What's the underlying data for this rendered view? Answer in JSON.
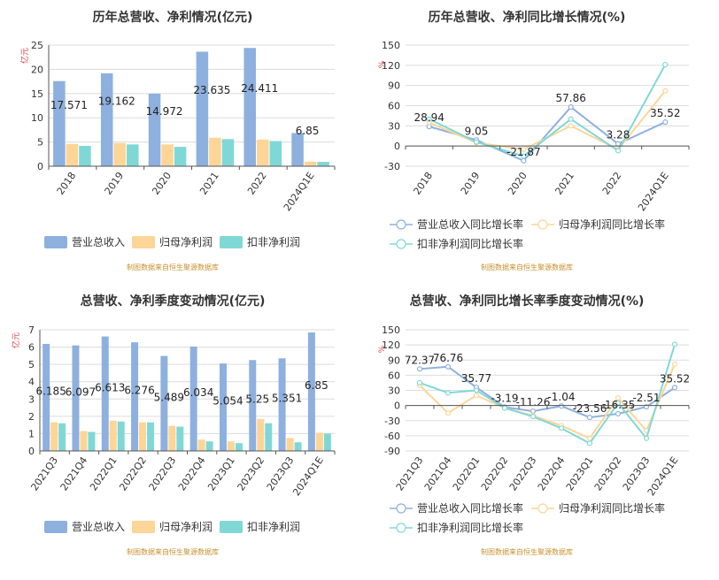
{
  "source_note": "制图数据来自恒生聚源数据库",
  "colors": {
    "revenue": "#8eb0de",
    "net_profit": "#fdd597",
    "deducted_profit": "#80d8d6",
    "revenue_line": "#8eb0de",
    "net_line": "#fdd597",
    "deducted_line": "#80d8d6",
    "unit": "#e03a3a",
    "source": "#c8902e"
  },
  "chart_data": [
    {
      "id": "annual-bar",
      "type": "bar",
      "title": "历年总营收、净利情况(亿元)",
      "unit_label": "亿元",
      "categories": [
        "2018",
        "2019",
        "2020",
        "2021",
        "2022",
        "2024Q1E"
      ],
      "ylim": [
        0,
        25
      ],
      "yticks": [
        0,
        5,
        10,
        15,
        20,
        25
      ],
      "series": [
        {
          "name": "营业总收入",
          "values": [
            17.571,
            19.162,
            14.972,
            23.635,
            24.411,
            6.85
          ],
          "color_key": "revenue"
        },
        {
          "name": "归母净利润",
          "values": [
            4.6,
            4.8,
            4.5,
            5.9,
            5.5,
            0.95
          ],
          "color_key": "net_profit"
        },
        {
          "name": "扣非净利润",
          "values": [
            4.2,
            4.5,
            4.0,
            5.6,
            5.2,
            0.9
          ],
          "color_key": "deducted_profit"
        }
      ],
      "data_labels": [
        "17.571",
        "19.162",
        "14.972",
        "23.635",
        "24.411",
        "6.85"
      ],
      "grid": true,
      "legend": "bottom"
    },
    {
      "id": "annual-line",
      "type": "line",
      "title": "历年总营收、净利同比增长情况(%)",
      "unit_label": "%",
      "categories": [
        "2018",
        "2019",
        "2020",
        "2021",
        "2022",
        "2024Q1E"
      ],
      "ylim": [
        -30,
        150
      ],
      "yticks": [
        -30,
        0,
        30,
        60,
        90,
        120,
        150
      ],
      "series": [
        {
          "name": "营业总收入同比增长率",
          "values": [
            28.94,
            9.05,
            -21.87,
            57.86,
            3.28,
            35.52
          ],
          "color_key": "revenue_line"
        },
        {
          "name": "归母净利润同比增长率",
          "values": [
            35,
            5,
            -5,
            30,
            -5,
            82
          ],
          "color_key": "net_line"
        },
        {
          "name": "扣非净利润同比增长率",
          "values": [
            40,
            6,
            -15,
            40,
            -7,
            121
          ],
          "color_key": "deducted_line"
        }
      ],
      "data_labels": [
        "28.94",
        "9.05",
        "-21.87",
        "57.86",
        "3.28",
        "35.52"
      ],
      "grid": true,
      "legend": "bottom"
    },
    {
      "id": "quarter-bar",
      "type": "bar",
      "title": "总营收、净利季度变动情况(亿元)",
      "unit_label": "亿元",
      "categories": [
        "2021Q3",
        "2021Q4",
        "2022Q1",
        "2022Q2",
        "2022Q3",
        "2022Q4",
        "2023Q1",
        "2023Q2",
        "2023Q3",
        "2024Q1E"
      ],
      "ylim": [
        0,
        7
      ],
      "yticks": [
        0,
        1,
        2,
        3,
        4,
        5,
        6,
        7
      ],
      "series": [
        {
          "name": "营业总收入",
          "values": [
            6.185,
            6.097,
            6.613,
            6.276,
            5.489,
            6.034,
            5.054,
            5.25,
            5.351,
            6.85
          ],
          "color_key": "revenue"
        },
        {
          "name": "归母净利润",
          "values": [
            1.65,
            1.15,
            1.75,
            1.65,
            1.45,
            0.65,
            0.55,
            1.85,
            0.75,
            1.05
          ],
          "color_key": "net_profit"
        },
        {
          "name": "扣非净利润",
          "values": [
            1.6,
            1.1,
            1.7,
            1.65,
            1.4,
            0.55,
            0.45,
            1.6,
            0.5,
            1.0
          ],
          "color_key": "deducted_profit"
        }
      ],
      "data_labels": [
        "6.185",
        "6.097",
        "6.613",
        "6.276",
        "5.489",
        "6.034",
        "5.054",
        "5.25",
        "5.351",
        "6.85"
      ],
      "grid": true,
      "legend": "bottom"
    },
    {
      "id": "quarter-line",
      "type": "line",
      "title": "总营收、净利同比增长率季度变动情况(%)",
      "unit_label": "%",
      "categories": [
        "2021Q3",
        "2021Q4",
        "2022Q1",
        "2022Q2",
        "2022Q3",
        "2022Q4",
        "2023Q1",
        "2023Q2",
        "2023Q3",
        "2024Q1E"
      ],
      "ylim": [
        -90,
        150
      ],
      "yticks": [
        -90,
        -60,
        -30,
        0,
        30,
        60,
        90,
        120,
        150
      ],
      "series": [
        {
          "name": "营业总收入同比增长率",
          "values": [
            72.37,
            76.76,
            35.77,
            -3.19,
            -11.26,
            -1.04,
            -23.56,
            -16.35,
            -2.51,
            35.52
          ],
          "color_key": "revenue_line"
        },
        {
          "name": "归母净利润同比增长率",
          "values": [
            40,
            -15,
            20,
            -5,
            -20,
            -40,
            -65,
            15,
            -50,
            82
          ],
          "color_key": "net_line"
        },
        {
          "name": "扣非净利润同比增长率",
          "values": [
            45,
            25,
            30,
            -5,
            -22,
            -45,
            -75,
            5,
            -65,
            121
          ],
          "color_key": "deducted_line"
        }
      ],
      "data_labels": [
        "72.37",
        "76.76",
        "35.77",
        "-3.19",
        "-11.26",
        "-1.04",
        "-23.56",
        "-16.35",
        "-2.51",
        "35.52"
      ],
      "grid": true,
      "legend": "bottom"
    }
  ]
}
